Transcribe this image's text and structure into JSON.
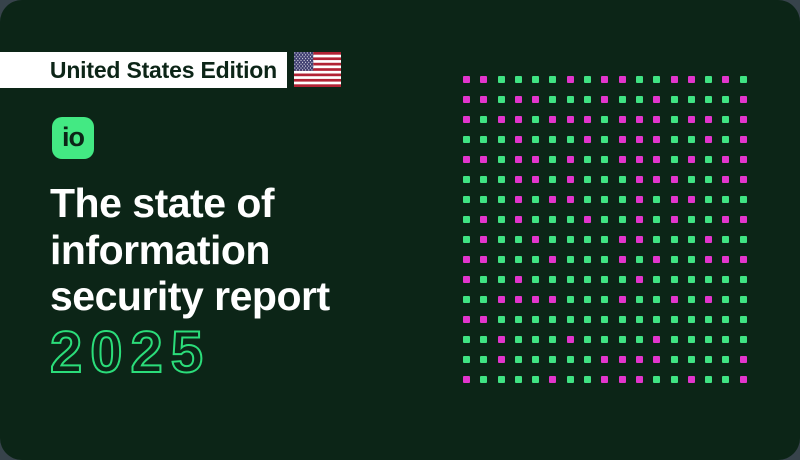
{
  "banner": {
    "label": "United States Edition"
  },
  "logo": {
    "text": "io"
  },
  "title": {
    "line1": "The state of",
    "line2": "information",
    "line3": "security report"
  },
  "year": "2025",
  "colors": {
    "page_bg": "#37434b",
    "card_bg": "#0c2517",
    "banner_bg": "#ffffff",
    "banner_text": "#0c2517",
    "logo_green": "#43e983",
    "title_text": "#ffffff",
    "year_outline": "#2bdd7a",
    "dot_green": "#40e383",
    "dot_magenta": "#e235cc",
    "flag_red": "#b22234",
    "flag_blue": "#3c3b6e",
    "flag_white": "#ffffff"
  },
  "dot_grid": {
    "rows": 16,
    "cols": 17,
    "legend": {
      "G": "green-dot",
      "M": "magenta-dot"
    },
    "pattern": [
      "MMGGGGMGMMGGMMGMG",
      "MMGMMGGGMGGMGGGGM",
      "MGMMGMMMGMMMGMMGM",
      "GGGMGGGMGMMMGGMGM",
      "MMGMMGMGGMMMGMGMM",
      "GGGMMGMGGGMMMGGMM",
      "GGGMGMMGGGMGMMGGG",
      "GMGMGGGMGGMGMGGMM",
      "GMGGMGGGGMMGGGMGG",
      "MMGGGMGGGMGMGGMMM",
      "MGGMGGGGGGMGGGGGG",
      "GGMMMMGGGMGGMGMGG",
      "MMGGGGGGGGGGGGGGG",
      "GGMGGGMGGGGMGGGGG",
      "GGMGGGGGMMMMGGGGM",
      "MGGGGMGGMMMGGMGGM"
    ]
  }
}
